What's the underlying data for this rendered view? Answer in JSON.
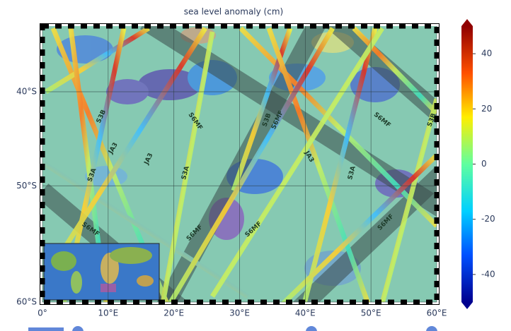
{
  "chart_data": {
    "type": "map",
    "title": "sea level anomaly (cm)",
    "xlim": [
      0,
      60
    ],
    "xticks": [
      {
        "value": 0,
        "label": "0°"
      },
      {
        "value": 10,
        "label": "10°E"
      },
      {
        "value": 20,
        "label": "20°E"
      },
      {
        "value": 30,
        "label": "30°E"
      },
      {
        "value": 40,
        "label": "40°E"
      },
      {
        "value": 50,
        "label": "50°E"
      },
      {
        "value": 60,
        "label": "60°E"
      }
    ],
    "ylim": [
      -60,
      -32
    ],
    "yticks": [
      {
        "value": -40,
        "label": "40°S"
      },
      {
        "value": -50,
        "label": "50°S"
      },
      {
        "value": -60,
        "label": "60°S"
      }
    ],
    "grid": true,
    "colorbar": {
      "lim": [
        -50,
        50
      ],
      "ticks": [
        -40,
        -20,
        0,
        20,
        40
      ],
      "colormap": [
        "#00008f",
        "#0050ff",
        "#00d0ff",
        "#60ff9f",
        "#ffee00",
        "#ff5000",
        "#900000"
      ]
    },
    "track_labels": [
      "S3B",
      "S3A",
      "S6MF",
      "JA3",
      "JA3",
      "S3A",
      "S6MF",
      "S6MF",
      "S3B",
      "S6MF",
      "S6MF",
      "JA3",
      "S3A",
      "S6MF",
      "S3B",
      "S6MF"
    ]
  }
}
